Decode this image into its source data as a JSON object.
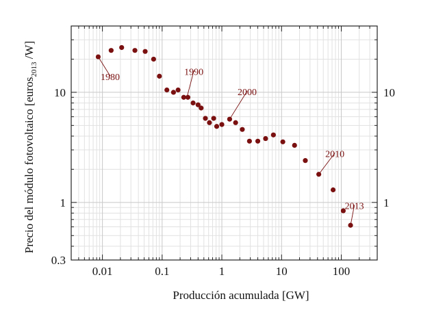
{
  "chart_data": {
    "type": "scatter",
    "x_scale": "log",
    "y_scale": "log",
    "xlim": [
      0.003,
      400
    ],
    "ylim": [
      0.3,
      40
    ],
    "grid": true,
    "marker_color": "#7a1010",
    "xlabel": "Producción acumulada [GW]",
    "ylabel": {
      "prefix": "Precio del módulo fotovoltaico [euros",
      "sub": "2013",
      "suffix": " /W]"
    },
    "x_ticks": [
      {
        "value": 0.01,
        "label": "0.01"
      },
      {
        "value": 0.1,
        "label": "0.1"
      },
      {
        "value": 1,
        "label": "1"
      },
      {
        "value": 10,
        "label": "10"
      },
      {
        "value": 100,
        "label": "100"
      }
    ],
    "y_ticks": [
      {
        "value": 0.3,
        "label": "0.3"
      },
      {
        "value": 1,
        "label": "1"
      },
      {
        "value": 10,
        "label": "10"
      }
    ],
    "y_ticks_right": [
      {
        "value": 1,
        "label": "1"
      },
      {
        "value": 10,
        "label": "10"
      }
    ],
    "points": [
      {
        "x": 0.0085,
        "y": 21
      },
      {
        "x": 0.014,
        "y": 24
      },
      {
        "x": 0.021,
        "y": 25.5
      },
      {
        "x": 0.035,
        "y": 24
      },
      {
        "x": 0.052,
        "y": 23.5
      },
      {
        "x": 0.072,
        "y": 20
      },
      {
        "x": 0.09,
        "y": 14
      },
      {
        "x": 0.12,
        "y": 10.5
      },
      {
        "x": 0.155,
        "y": 10
      },
      {
        "x": 0.185,
        "y": 10.5
      },
      {
        "x": 0.23,
        "y": 9
      },
      {
        "x": 0.27,
        "y": 9
      },
      {
        "x": 0.33,
        "y": 8
      },
      {
        "x": 0.4,
        "y": 7.7
      },
      {
        "x": 0.45,
        "y": 7.2
      },
      {
        "x": 0.53,
        "y": 5.8
      },
      {
        "x": 0.62,
        "y": 5.3
      },
      {
        "x": 0.73,
        "y": 5.8
      },
      {
        "x": 0.82,
        "y": 4.9
      },
      {
        "x": 1.0,
        "y": 5.1
      },
      {
        "x": 1.35,
        "y": 5.7
      },
      {
        "x": 1.7,
        "y": 5.3
      },
      {
        "x": 2.2,
        "y": 4.6
      },
      {
        "x": 2.9,
        "y": 3.6
      },
      {
        "x": 4.0,
        "y": 3.6
      },
      {
        "x": 5.4,
        "y": 3.8
      },
      {
        "x": 7.3,
        "y": 4.1
      },
      {
        "x": 10.5,
        "y": 3.55
      },
      {
        "x": 16.5,
        "y": 3.3
      },
      {
        "x": 25,
        "y": 2.4
      },
      {
        "x": 42,
        "y": 1.8
      },
      {
        "x": 73,
        "y": 1.3
      },
      {
        "x": 108,
        "y": 0.84
      },
      {
        "x": 143,
        "y": 0.62
      }
    ],
    "annotations": [
      {
        "text": "1980",
        "x": 0.0085,
        "y": 21,
        "label_x": 0.0135,
        "label_y": 12.9
      },
      {
        "text": "1990",
        "x": 0.26,
        "y": 9,
        "label_x": 0.34,
        "label_y": 14.4
      },
      {
        "text": "2000",
        "x": 1.35,
        "y": 5.7,
        "label_x": 2.65,
        "label_y": 9.4
      },
      {
        "text": "2010",
        "x": 42,
        "y": 1.8,
        "label_x": 78,
        "label_y": 2.58
      },
      {
        "text": "2013",
        "x": 143,
        "y": 0.62,
        "label_x": 166,
        "label_y": 0.87
      }
    ]
  }
}
